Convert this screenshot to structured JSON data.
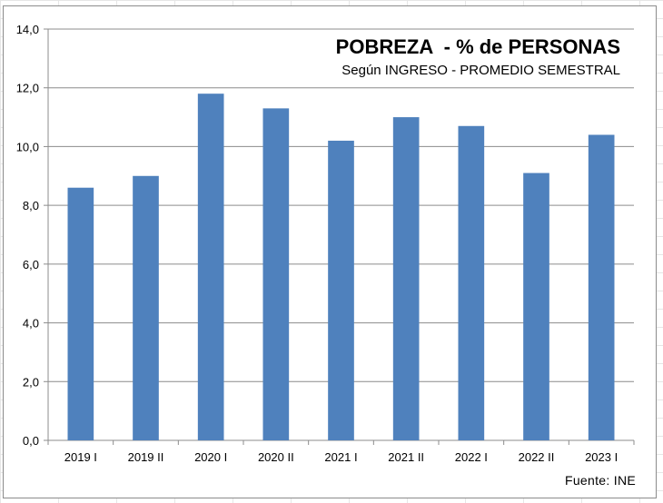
{
  "chart_data": {
    "type": "bar",
    "title": "POBREZA  - % de PERSONAS",
    "subtitle": "Según INGRESO - PROMEDIO SEMESTRAL",
    "source": "Fuente: INE",
    "categories": [
      "2019 I",
      "2019 II",
      "2020 I",
      "2020 II",
      "2021 I",
      "2021 II",
      "2022 I",
      "2022 II",
      "2023 I"
    ],
    "values": [
      8.6,
      9.0,
      11.8,
      11.3,
      10.2,
      11.0,
      10.7,
      9.1,
      10.4
    ],
    "yticks": [
      "0,0",
      "2,0",
      "4,0",
      "6,0",
      "8,0",
      "10,0",
      "12,0",
      "14,0"
    ],
    "ylim": [
      0,
      14
    ],
    "grid": true,
    "bar_color": "#4f81bd"
  }
}
